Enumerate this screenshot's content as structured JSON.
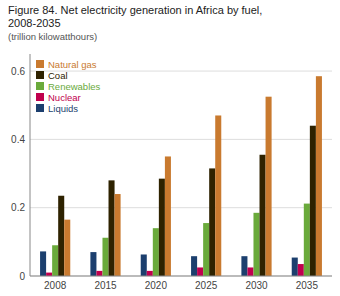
{
  "chart_data": {
    "type": "bar",
    "title": "Figure 84. Net electricity generation in Africa by fuel,\n2008-2035",
    "subtitle": "(trillion kilowatthours)",
    "categories": [
      "2008",
      "2015",
      "2020",
      "2025",
      "2030",
      "2035"
    ],
    "series": [
      {
        "name": "Liquids",
        "color": "#1c3f6e",
        "values": [
          0.072,
          0.07,
          0.063,
          0.058,
          0.058,
          0.054
        ]
      },
      {
        "name": "Nuclear",
        "color": "#c0004e",
        "values": [
          0.01,
          0.015,
          0.015,
          0.025,
          0.025,
          0.035
        ]
      },
      {
        "name": "Renewables",
        "color": "#6aaa3b",
        "values": [
          0.09,
          0.112,
          0.14,
          0.155,
          0.185,
          0.212
        ]
      },
      {
        "name": "Coal",
        "color": "#2e2200",
        "values": [
          0.235,
          0.28,
          0.285,
          0.315,
          0.355,
          0.44
        ]
      },
      {
        "name": "Natural gas",
        "color": "#c97a2f",
        "values": [
          0.165,
          0.24,
          0.35,
          0.47,
          0.525,
          0.585
        ]
      }
    ],
    "ylim": [
      0,
      0.65
    ],
    "yticks": [
      0,
      0.2,
      0.4,
      0.6
    ],
    "grid": true,
    "legend": "upper left"
  }
}
